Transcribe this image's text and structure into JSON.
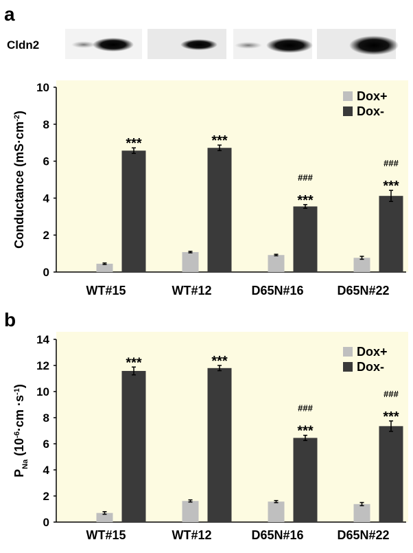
{
  "chart_data": [
    {
      "type": "bar",
      "panel_label": "a",
      "blot_label": "Cldn2",
      "ylabel": [
        {
          "text": "Conductance (mS·cm"
        },
        {
          "text": "-2",
          "script": "super"
        },
        {
          "text": ")"
        }
      ],
      "categories": [
        "WT#15",
        "WT#12",
        "D65N#16",
        "D65N#22"
      ],
      "series": [
        {
          "name": "Dox+",
          "color": "#bfbfbf",
          "values": [
            0.45,
            1.08,
            0.92,
            0.77
          ],
          "errors": [
            0.04,
            0.04,
            0.04,
            0.08
          ]
        },
        {
          "name": "Dox-",
          "color": "#3a3a3a",
          "values": [
            6.57,
            6.72,
            3.55,
            4.12
          ],
          "errors": [
            0.15,
            0.15,
            0.1,
            0.3
          ],
          "annotations": [
            [
              "***"
            ],
            [
              "***"
            ],
            [
              "###",
              "***"
            ],
            [
              "###",
              "***"
            ]
          ]
        }
      ],
      "ylim": [
        0,
        10
      ],
      "yticks": [
        0,
        2,
        4,
        6,
        8,
        10
      ],
      "grid": false,
      "legend": "upper right",
      "background": "#fdfbe1"
    },
    {
      "type": "bar",
      "panel_label": "b",
      "ylabel": [
        {
          "text": "P"
        },
        {
          "text": "Na",
          "script": "sub"
        },
        {
          "text": " (10"
        },
        {
          "text": "-6",
          "script": "super"
        },
        {
          "text": "·cm ·s"
        },
        {
          "text": "-1",
          "script": "super"
        },
        {
          "text": ")"
        }
      ],
      "categories": [
        "WT#15",
        "WT#12",
        "D65N#16",
        "D65N#22"
      ],
      "series": [
        {
          "name": "Dox+",
          "color": "#bfbfbf",
          "values": [
            0.7,
            1.62,
            1.57,
            1.38
          ],
          "errors": [
            0.1,
            0.08,
            0.08,
            0.12
          ]
        },
        {
          "name": "Dox-",
          "color": "#3a3a3a",
          "values": [
            11.58,
            11.8,
            6.45,
            7.35
          ],
          "errors": [
            0.3,
            0.2,
            0.2,
            0.4
          ],
          "annotations": [
            [
              "***"
            ],
            [
              "***"
            ],
            [
              "###",
              "***"
            ],
            [
              "###",
              "***"
            ]
          ]
        }
      ],
      "ylim": [
        0,
        14
      ],
      "yticks": [
        0,
        2,
        4,
        6,
        8,
        10,
        12,
        14
      ],
      "grid": false,
      "legend": "upper right",
      "background": "#fdfbe1"
    }
  ]
}
